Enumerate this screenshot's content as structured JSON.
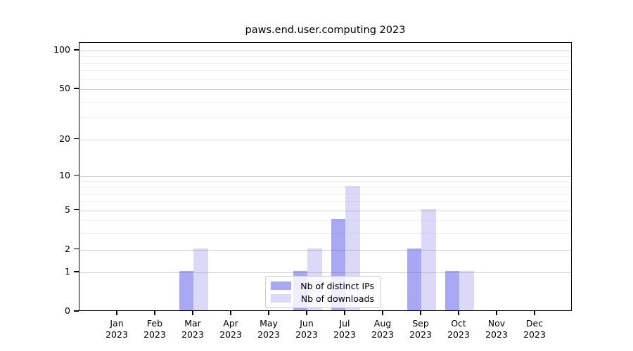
{
  "chart_data": {
    "type": "bar",
    "title": "paws.end.user.computing 2023",
    "categories": [
      "Jan",
      "Feb",
      "Mar",
      "Apr",
      "May",
      "Jun",
      "Jul",
      "Aug",
      "Sep",
      "Oct",
      "Nov",
      "Dec"
    ],
    "category_year": "2023",
    "series": [
      {
        "name": "Nb of distinct IPs",
        "color": "#a8a8f4",
        "values": [
          0,
          0,
          1,
          0,
          0,
          1,
          4,
          0,
          2,
          1,
          0,
          0
        ]
      },
      {
        "name": "Nb of downloads",
        "color": "#dadaf8",
        "values": [
          0,
          0,
          2,
          0,
          0,
          2,
          8,
          0,
          5,
          1,
          0,
          0
        ]
      }
    ],
    "xlabel": "",
    "ylabel": "",
    "yscale": "log1p",
    "ylim": [
      0,
      115
    ],
    "y_major_ticks": [
      0,
      1,
      2,
      5,
      10,
      20,
      50,
      100
    ],
    "y_minor_ticks": [
      3,
      4,
      6,
      7,
      8,
      9,
      30,
      40,
      60,
      70,
      80,
      90
    ],
    "grid": true,
    "legend_position": "lower center, inside plot"
  },
  "colors": {
    "background": "#ffffff",
    "spine": "#000000",
    "major_grid": "#c9c9c9",
    "minor_grid": "#ececec",
    "legend_border": "#cccccc"
  }
}
